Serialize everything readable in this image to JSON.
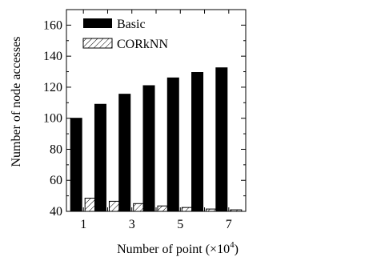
{
  "chart_data": {
    "type": "bar",
    "x": [
      1,
      2,
      3,
      4,
      5,
      6,
      7
    ],
    "x_tick_labels": [
      "1",
      "3",
      "5",
      "7"
    ],
    "series": [
      {
        "name": "Basic",
        "values": [
          100,
          109,
          115.5,
          121,
          126,
          129.5,
          132.5
        ],
        "color": "#000000",
        "fill": "solid"
      },
      {
        "name": "CORkNN",
        "values": [
          48.5,
          46.5,
          45,
          43.5,
          42.5,
          41.5,
          41
        ],
        "color": "#000000",
        "fill": "hatched"
      }
    ],
    "ylim": [
      40,
      170
    ],
    "y_ticks": [
      40,
      60,
      80,
      100,
      120,
      140,
      160
    ],
    "xlabel_main": "Number of point (×10",
    "xlabel_exp": "4",
    "xlabel_close": ")",
    "ylabel": "Number of node accesses",
    "legend_position": "top-left",
    "grid": false
  }
}
